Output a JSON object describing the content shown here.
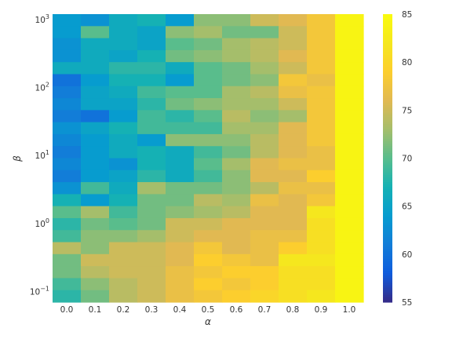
{
  "chart_data": {
    "type": "heatmap",
    "title": "",
    "xlabel": "α",
    "ylabel": "β",
    "x_categories": [
      "0.0",
      "0.1",
      "0.2",
      "0.3",
      "0.4",
      "0.5",
      "0.6",
      "0.7",
      "0.8",
      "0.9",
      "1.0"
    ],
    "y_scale": "log",
    "y_range": [
      0.07,
      1200
    ],
    "y_ticks": [
      {
        "value": 0.1,
        "base": "10",
        "exp": "−1"
      },
      {
        "value": 1,
        "base": "10",
        "exp": "0"
      },
      {
        "value": 10,
        "base": "10",
        "exp": "1"
      },
      {
        "value": 100,
        "base": "10",
        "exp": "2"
      },
      {
        "value": 1000,
        "base": "10",
        "exp": "3"
      }
    ],
    "rows_order": "top-to-bottom (β high → low)",
    "values": [
      [
        64,
        63,
        66,
        67,
        64,
        72,
        72,
        75,
        76,
        78,
        84
      ],
      [
        64,
        70,
        66,
        65,
        72,
        73,
        71,
        71,
        75,
        78,
        84
      ],
      [
        63,
        66,
        66,
        65,
        70,
        71,
        73,
        74,
        75,
        78,
        84
      ],
      [
        63,
        66,
        65,
        67,
        71,
        72,
        73,
        74,
        76,
        78,
        84
      ],
      [
        66,
        66,
        68,
        68,
        66,
        70,
        71,
        73,
        75,
        78,
        84
      ],
      [
        60,
        64,
        67,
        67,
        64,
        70,
        71,
        72,
        78,
        77,
        84
      ],
      [
        61,
        65,
        66,
        69,
        70,
        70,
        73,
        74,
        77,
        78,
        84
      ],
      [
        62,
        65,
        65,
        68,
        71,
        72,
        73,
        73,
        75,
        78,
        84
      ],
      [
        61,
        60,
        64,
        69,
        68,
        70,
        74,
        72,
        73,
        78,
        84
      ],
      [
        63,
        65,
        67,
        69,
        69,
        69,
        73,
        73,
        76,
        78,
        84
      ],
      [
        62,
        64,
        66,
        64,
        72,
        72,
        72,
        74,
        76,
        78,
        84
      ],
      [
        61,
        64,
        66,
        67,
        66,
        69,
        71,
        74,
        76,
        77,
        84
      ],
      [
        62,
        64,
        63,
        67,
        66,
        70,
        73,
        76,
        77,
        77,
        84
      ],
      [
        61,
        64,
        65,
        68,
        66,
        69,
        72,
        76,
        76,
        79,
        84
      ],
      [
        63,
        69,
        66,
        73,
        71,
        71,
        72,
        74,
        77,
        77,
        84
      ],
      [
        67,
        64,
        67,
        71,
        71,
        74,
        73,
        77,
        76,
        78,
        84
      ],
      [
        70,
        73,
        69,
        71,
        72,
        73,
        74,
        76,
        76,
        82,
        84
      ],
      [
        68,
        71,
        70,
        71,
        75,
        75,
        76,
        76,
        76,
        81,
        84
      ],
      [
        69,
        72,
        72,
        73,
        75,
        76,
        76,
        77,
        77,
        81,
        84
      ],
      [
        74,
        72,
        75,
        75,
        76,
        78,
        76,
        77,
        79,
        81,
        84
      ],
      [
        71,
        75,
        75,
        75,
        76,
        79,
        78,
        77,
        82,
        82,
        84
      ],
      [
        71,
        74,
        75,
        75,
        77,
        78,
        79,
        79,
        81,
        81,
        84
      ],
      [
        69,
        72,
        74,
        75,
        77,
        79,
        78,
        79,
        81,
        81,
        84
      ],
      [
        68,
        71,
        74,
        75,
        77,
        78,
        79,
        80,
        81,
        82,
        84
      ]
    ],
    "colorbar": {
      "min": 55,
      "max": 85,
      "ticks": [
        "55",
        "60",
        "65",
        "70",
        "75",
        "80",
        "85"
      ],
      "colormap": "parula"
    },
    "grid": false,
    "colors": {
      "text": "#333333",
      "background": "#ffffff"
    }
  }
}
